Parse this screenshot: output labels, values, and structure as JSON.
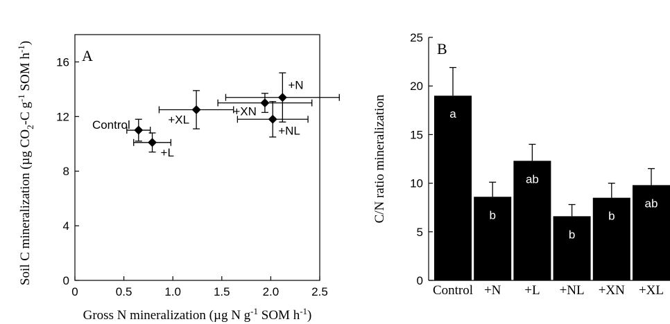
{
  "chart_data": [
    {
      "type": "scatter",
      "panel_label": "A",
      "xlabel": "Gross N mineralization (µg N g",
      "xlabel_sup": "-1",
      "xlabel_end": " SOM h",
      "xlabel_sup2": "-1",
      "xlabel_close": ")",
      "ylabel": "Soil C mineralization (µg CO",
      "ylabel_sub": "2",
      "ylabel_mid": "-C g",
      "ylabel_sup": "-1",
      "ylabel_end": " SOM h",
      "ylabel_sup2": "-1",
      "ylabel_close": ")",
      "xlim": [
        0,
        2.5
      ],
      "ylim": [
        0,
        18
      ],
      "xticks": [
        0,
        0.5,
        1,
        1.5,
        2,
        2.5
      ],
      "xtick_labels": [
        "0",
        "0.5",
        "1.0",
        "1.5",
        "2.0",
        "2.5"
      ],
      "yticks": [
        0,
        4,
        8,
        12,
        16
      ],
      "ytick_labels": [
        "0",
        "4",
        "8",
        "12",
        "16"
      ],
      "grid": false,
      "points": [
        {
          "label": "Control",
          "x": 0.65,
          "y": 11.0,
          "xerr": 0.12,
          "yerr": 0.8
        },
        {
          "label": "+L",
          "x": 0.79,
          "y": 10.1,
          "xerr": 0.19,
          "yerr": 0.7
        },
        {
          "label": "+XL",
          "x": 1.24,
          "y": 12.5,
          "xerr": 0.38,
          "yerr": 1.4
        },
        {
          "label": "+XN",
          "x": 1.94,
          "y": 13.0,
          "xerr": 0.48,
          "yerr": 0.7
        },
        {
          "label": "+NL",
          "x": 2.02,
          "y": 11.8,
          "xerr": 0.36,
          "yerr": 1.3
        },
        {
          "label": "+N",
          "x": 2.12,
          "y": 13.4,
          "xerr": 0.58,
          "yerr": 1.8
        }
      ]
    },
    {
      "type": "bar",
      "panel_label": "B",
      "ylabel": "C/N ratio mineralization",
      "categories": [
        "Control",
        "+N",
        "+L",
        "+NL",
        "+XN",
        "+XL"
      ],
      "values": [
        19.0,
        8.6,
        12.3,
        6.6,
        8.5,
        9.8
      ],
      "errors": [
        2.9,
        1.5,
        1.7,
        1.2,
        1.5,
        1.7
      ],
      "bar_letters": [
        "a",
        "b",
        "ab",
        "b",
        "b",
        "ab"
      ],
      "ylim": [
        0,
        25
      ],
      "yticks": [
        0,
        5,
        10,
        15,
        20,
        25
      ],
      "ytick_labels": [
        "0",
        "5",
        "10",
        "15",
        "20",
        "25"
      ],
      "grid": false,
      "bar_color": "#000000",
      "letter_color": "#ffffff"
    }
  ]
}
